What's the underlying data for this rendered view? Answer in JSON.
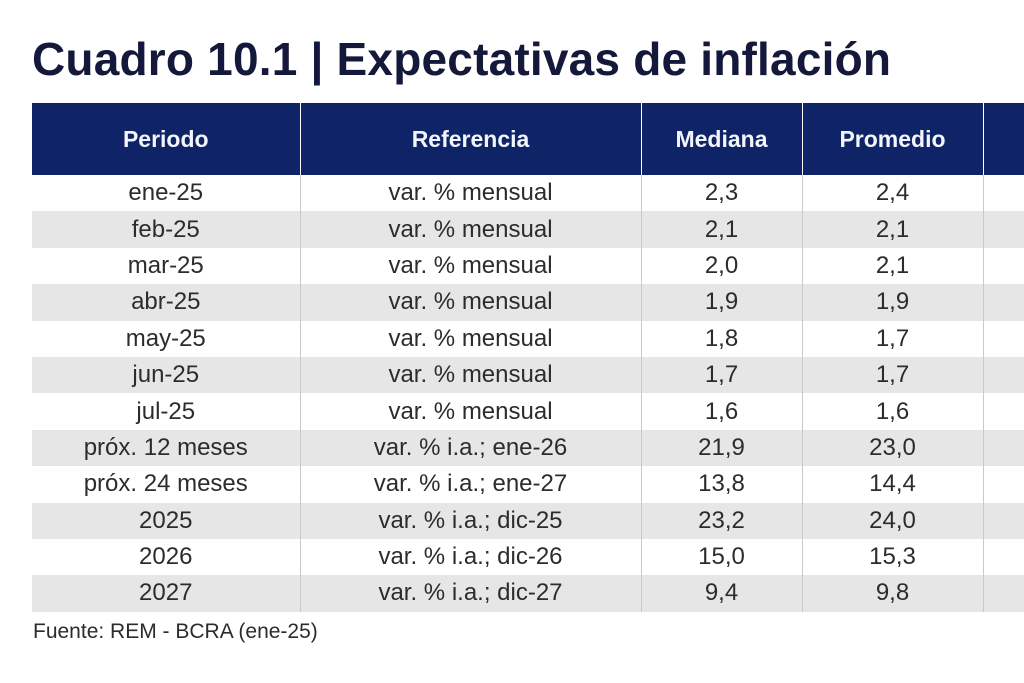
{
  "title": "Cuadro 10.1 | Expectativas de inflación",
  "table": {
    "headers": [
      "Periodo",
      "Referencia",
      "Mediana",
      "Promedio",
      ""
    ],
    "rows": [
      {
        "periodo": "ene-25",
        "referencia": "var. % mensual",
        "mediana": "2,3",
        "promedio": "2,4"
      },
      {
        "periodo": "feb-25",
        "referencia": "var. % mensual",
        "mediana": "2,1",
        "promedio": "2,1"
      },
      {
        "periodo": "mar-25",
        "referencia": "var. % mensual",
        "mediana": "2,0",
        "promedio": "2,1"
      },
      {
        "periodo": "abr-25",
        "referencia": "var. % mensual",
        "mediana": "1,9",
        "promedio": "1,9"
      },
      {
        "periodo": "may-25",
        "referencia": "var. % mensual",
        "mediana": "1,8",
        "promedio": "1,7"
      },
      {
        "periodo": "jun-25",
        "referencia": "var. % mensual",
        "mediana": "1,7",
        "promedio": "1,7"
      },
      {
        "periodo": "jul-25",
        "referencia": "var. % mensual",
        "mediana": "1,6",
        "promedio": "1,6"
      },
      {
        "periodo": "próx. 12 meses",
        "referencia": "var. % i.a.; ene-26",
        "mediana": "21,9",
        "promedio": "23,0"
      },
      {
        "periodo": "próx. 24 meses",
        "referencia": "var. % i.a.; ene-27",
        "mediana": "13,8",
        "promedio": "14,4"
      },
      {
        "periodo": "2025",
        "referencia": "var. % i.a.; dic-25",
        "mediana": "23,2",
        "promedio": "24,0"
      },
      {
        "periodo": "2026",
        "referencia": "var. % i.a.; dic-26",
        "mediana": "15,0",
        "promedio": "15,3"
      },
      {
        "periodo": "2027",
        "referencia": "var. % i.a.; dic-27",
        "mediana": "9,4",
        "promedio": "9,8"
      }
    ]
  },
  "source": "Fuente: REM - BCRA (ene-25)",
  "colors": {
    "header_bg": "#0f2467",
    "title": "#14193b",
    "stripe": "#e6e6e6"
  }
}
